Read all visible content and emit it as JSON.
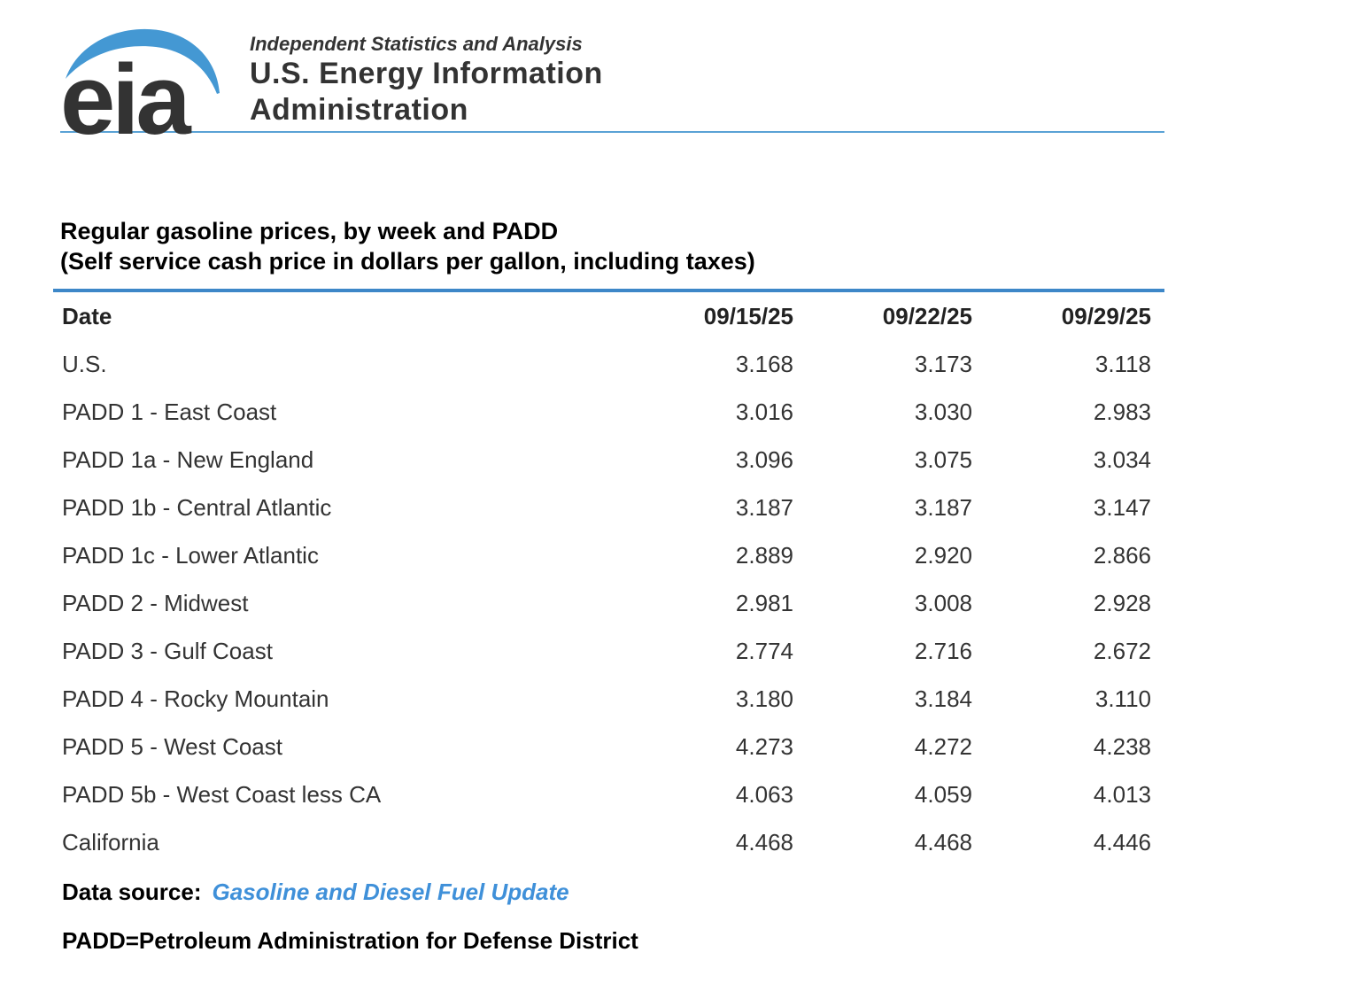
{
  "logo": {
    "acronym": "eia",
    "tagline": "Independent Statistics and Analysis",
    "org_line1": "U.S. Energy Information",
    "org_line2": "Administration"
  },
  "title": {
    "line1": "Regular gasoline prices, by week and PADD",
    "line2": "(Self service cash price in dollars per gallon, including taxes)"
  },
  "table": {
    "header": {
      "label": "Date",
      "columns": [
        "09/15/25",
        "09/22/25",
        "09/29/25"
      ]
    },
    "rows": [
      {
        "label": "U.S.",
        "values": [
          "3.168",
          "3.173",
          "3.118"
        ]
      },
      {
        "label": "PADD 1 - East Coast",
        "values": [
          "3.016",
          "3.030",
          "2.983"
        ]
      },
      {
        "label": "PADD 1a - New England",
        "values": [
          "3.096",
          "3.075",
          "3.034"
        ]
      },
      {
        "label": "PADD 1b - Central Atlantic",
        "values": [
          "3.187",
          "3.187",
          "3.147"
        ]
      },
      {
        "label": "PADD 1c - Lower Atlantic",
        "values": [
          "2.889",
          "2.920",
          "2.866"
        ]
      },
      {
        "label": "PADD 2 - Midwest",
        "values": [
          "2.981",
          "3.008",
          "2.928"
        ]
      },
      {
        "label": "PADD 3 - Gulf Coast",
        "values": [
          "2.774",
          "2.716",
          "2.672"
        ]
      },
      {
        "label": "PADD 4 - Rocky Mountain",
        "values": [
          "3.180",
          "3.184",
          "3.110"
        ]
      },
      {
        "label": "PADD 5 - West Coast",
        "values": [
          "4.273",
          "4.272",
          "4.238"
        ]
      },
      {
        "label": "PADD 5b - West Coast less CA",
        "values": [
          "4.063",
          "4.059",
          "4.013"
        ]
      },
      {
        "label": "California",
        "values": [
          "4.468",
          "4.468",
          "4.446"
        ]
      }
    ]
  },
  "footer": {
    "data_source_label": "Data source:",
    "data_source_link": "Gasoline and Diesel Fuel Update",
    "padd_note": "PADD=Petroleum Administration for Defense District"
  },
  "colors": {
    "logo_blue": "#4498d3",
    "thin_rule_blue": "#5aa2d5",
    "thick_rule_blue": "#3d87c8",
    "link_blue": "#3f90d9",
    "text_dark": "#333333"
  }
}
